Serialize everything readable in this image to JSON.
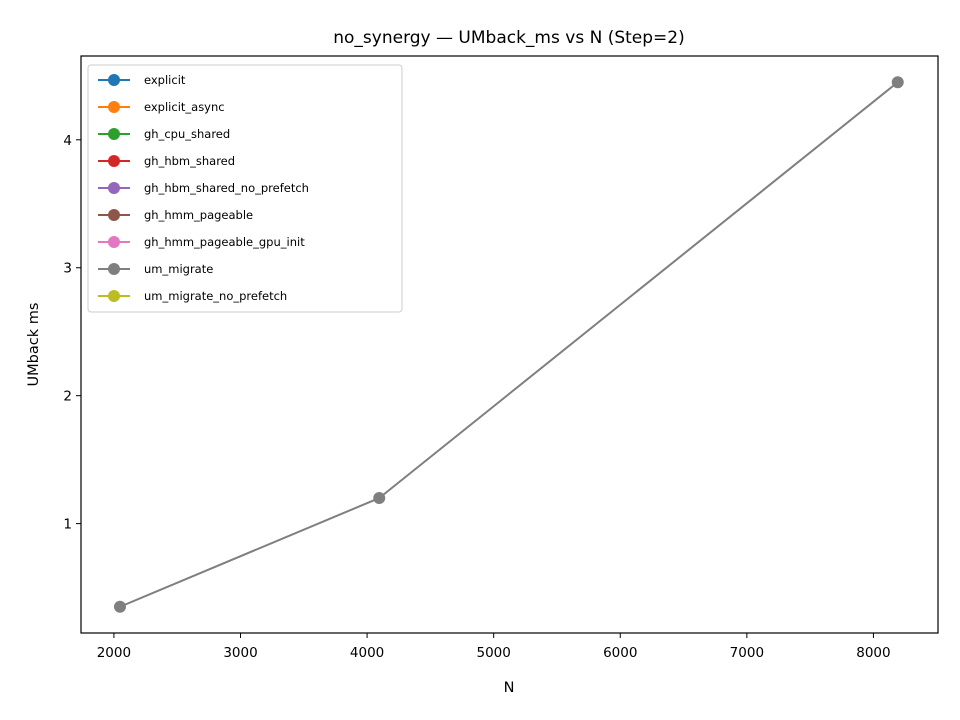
{
  "chart_data": {
    "type": "line",
    "title": "no_synergy — UMback_ms vs N (Step=2)",
    "xlabel": "N",
    "ylabel": "UMback ms",
    "xlim": [
      1740,
      8510
    ],
    "ylim": [
      0.145,
      4.655
    ],
    "xticks": [
      2000,
      3000,
      4000,
      5000,
      6000,
      7000,
      8000
    ],
    "yticks": [
      1,
      2,
      3,
      4
    ],
    "grid": false,
    "legend_position": "upper-left",
    "series": [
      {
        "name": "explicit",
        "color": "#1f77b4",
        "x": [],
        "y": []
      },
      {
        "name": "explicit_async",
        "color": "#ff7f0e",
        "x": [],
        "y": []
      },
      {
        "name": "gh_cpu_shared",
        "color": "#2ca02c",
        "x": [],
        "y": []
      },
      {
        "name": "gh_hbm_shared",
        "color": "#d62728",
        "x": [],
        "y": []
      },
      {
        "name": "gh_hbm_shared_no_prefetch",
        "color": "#9467bd",
        "x": [],
        "y": []
      },
      {
        "name": "gh_hmm_pageable",
        "color": "#8c564b",
        "x": [],
        "y": []
      },
      {
        "name": "gh_hmm_pageable_gpu_init",
        "color": "#e377c2",
        "x": [],
        "y": []
      },
      {
        "name": "um_migrate",
        "color": "#7f7f7f",
        "x": [
          2048,
          4096,
          8192
        ],
        "y": [
          0.35,
          1.2,
          4.45
        ]
      },
      {
        "name": "um_migrate_no_prefetch",
        "color": "#bcbd22",
        "x": [],
        "y": []
      }
    ]
  }
}
